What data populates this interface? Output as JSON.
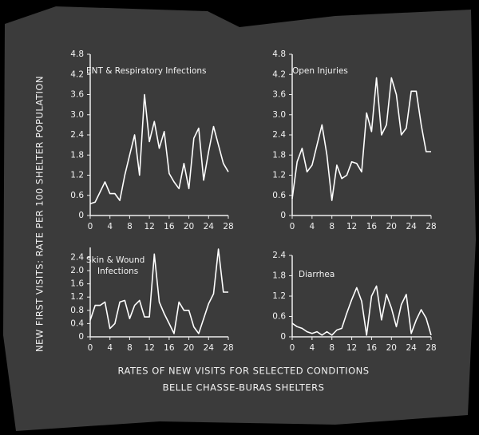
{
  "figure": {
    "ylabel": "NEW FIRST VISITS: RATE PER 100 SHELTER POPULATION",
    "caption": [
      "RATES OF NEW VISITS FOR SELECTED CONDITIONS",
      "BELLE CHASSE-BURAS SHELTERS"
    ]
  },
  "chart_data": [
    {
      "type": "line",
      "title": [
        "ENT & Respiratory Infections"
      ],
      "color": "#ffffff",
      "x": [
        0,
        1,
        2,
        3,
        4,
        5,
        6,
        7,
        8,
        9,
        10,
        11,
        12,
        13,
        14,
        15,
        16,
        17,
        18,
        19,
        20,
        21,
        22,
        23,
        24,
        25,
        26,
        27,
        28
      ],
      "values": [
        0.35,
        0.4,
        0.7,
        1.0,
        0.65,
        0.65,
        0.45,
        1.2,
        1.8,
        2.4,
        1.2,
        3.6,
        2.2,
        2.8,
        2.0,
        2.5,
        1.25,
        1.0,
        0.8,
        1.55,
        0.8,
        2.3,
        2.6,
        1.05,
        1.9,
        2.65,
        2.1,
        1.55,
        1.3
      ],
      "xlim": [
        0,
        28
      ],
      "xticks": [
        0,
        4,
        8,
        12,
        16,
        20,
        24,
        28
      ],
      "ylim": [
        0,
        4.8
      ],
      "yticks": [
        0,
        0.6,
        1.2,
        1.8,
        2.4,
        {
          "value": 3,
          "label": "3.0"
        },
        3.6,
        4.2,
        4.8
      ]
    },
    {
      "type": "line",
      "title": [
        "Open Injuries"
      ],
      "color": "#ffffff",
      "x": [
        0,
        1,
        2,
        3,
        4,
        5,
        6,
        7,
        8,
        9,
        10,
        11,
        12,
        13,
        14,
        15,
        16,
        17,
        18,
        19,
        20,
        21,
        22,
        23,
        24,
        25,
        26,
        27,
        28
      ],
      "values": [
        0.5,
        1.6,
        2.0,
        1.3,
        1.5,
        2.1,
        2.7,
        1.8,
        0.45,
        1.5,
        1.1,
        1.2,
        1.6,
        1.55,
        1.3,
        3.05,
        2.5,
        4.1,
        2.4,
        2.7,
        4.1,
        3.6,
        2.4,
        2.6,
        3.7,
        3.7,
        2.7,
        1.9,
        1.9
      ],
      "xlim": [
        0,
        28
      ],
      "xticks": [
        0,
        4,
        8,
        12,
        16,
        20,
        24,
        28
      ],
      "ylim": [
        0,
        4.8
      ],
      "yticks": [
        0,
        0.6,
        1.2,
        1.8,
        2.4,
        {
          "value": 3,
          "label": "3.0"
        },
        3.6,
        4.2,
        4.8
      ]
    },
    {
      "type": "line",
      "title": [
        "Skin & Wound",
        "Infections"
      ],
      "color": "#ffffff",
      "x": [
        0,
        1,
        2,
        3,
        4,
        5,
        6,
        7,
        8,
        9,
        10,
        11,
        12,
        13,
        14,
        15,
        16,
        17,
        18,
        19,
        20,
        21,
        22,
        23,
        24,
        25,
        26,
        27,
        28
      ],
      "values": [
        0.5,
        0.95,
        0.95,
        1.05,
        0.25,
        0.4,
        1.05,
        1.1,
        0.55,
        0.95,
        1.1,
        0.6,
        0.6,
        2.5,
        1.05,
        0.7,
        0.4,
        0.1,
        1.05,
        0.8,
        0.8,
        0.3,
        0.1,
        0.55,
        1.0,
        1.3,
        2.65,
        1.35,
        1.35
      ],
      "xlim": [
        0,
        28
      ],
      "xticks": [
        0,
        4,
        8,
        12,
        16,
        20,
        24,
        28
      ],
      "ylim": [
        0,
        2.7
      ],
      "yticks": [
        0,
        0.4,
        0.8,
        1.2,
        1.6,
        {
          "value": 2,
          "label": "2.0"
        },
        2.4
      ]
    },
    {
      "type": "line",
      "title": [
        "Diarrhea"
      ],
      "color": "#ffffff",
      "x": [
        0,
        1,
        2,
        3,
        4,
        5,
        6,
        7,
        8,
        9,
        10,
        11,
        12,
        13,
        14,
        15,
        16,
        17,
        18,
        19,
        20,
        21,
        22,
        23,
        24,
        25,
        26,
        27,
        28
      ],
      "values": [
        0.4,
        0.3,
        0.25,
        0.15,
        0.1,
        0.15,
        0.05,
        0.15,
        0.05,
        0.2,
        0.25,
        0.7,
        1.1,
        1.45,
        1.05,
        0.05,
        1.2,
        1.5,
        0.5,
        1.25,
        0.85,
        0.3,
        0.95,
        1.25,
        0.1,
        0.5,
        0.8,
        0.55,
        0.05
      ],
      "xlim": [
        0,
        28
      ],
      "xticks": [
        0,
        4,
        8,
        12,
        16,
        20,
        24,
        28
      ],
      "ylim": [
        0,
        2.4
      ],
      "yticks": [
        0,
        0.6,
        1.2,
        1.8,
        2.4
      ]
    }
  ]
}
